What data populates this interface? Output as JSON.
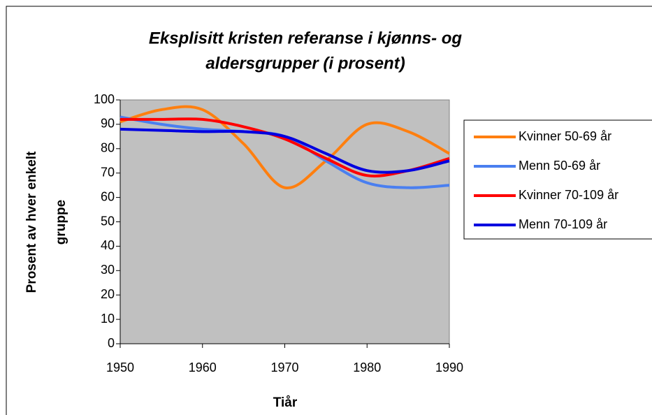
{
  "chart_data": {
    "type": "line",
    "title": [
      "Eksplisitt kristen referanse i kjønns- og",
      "aldersgrupper (i prosent)"
    ],
    "y_label": [
      "Prosent av hver enkelt",
      "gruppe"
    ],
    "x_label": "Tiår",
    "x": [
      1950,
      1955,
      1960,
      1965,
      1970,
      1975,
      1980,
      1985,
      1990
    ],
    "series": [
      {
        "name": "Kvinner 50-69 år",
        "color": "#ff7f0f",
        "values": [
          91,
          96,
          96,
          82,
          64,
          75,
          90,
          87,
          78
        ]
      },
      {
        "name": "Menn 50-69 år",
        "color": "#4a7ff0",
        "values": [
          93,
          90,
          88,
          87,
          85,
          75,
          66,
          64,
          65
        ]
      },
      {
        "name": "Kvinner 70-109 år",
        "color": "#ff0000",
        "values": [
          92,
          92,
          92,
          89,
          84,
          76,
          69,
          71,
          76
        ]
      },
      {
        "name": "Menn 70-109 år",
        "color": "#0000e0",
        "values": [
          88,
          87.5,
          87,
          87,
          85,
          78,
          71,
          71,
          75
        ]
      }
    ],
    "xlim": [
      1950,
      1990
    ],
    "xticks": [
      1950,
      1960,
      1970,
      1980,
      1990
    ],
    "ylim": [
      0,
      100
    ],
    "yticks": [
      0,
      10,
      20,
      30,
      40,
      50,
      60,
      70,
      80,
      90,
      100
    ],
    "legend": "right"
  }
}
